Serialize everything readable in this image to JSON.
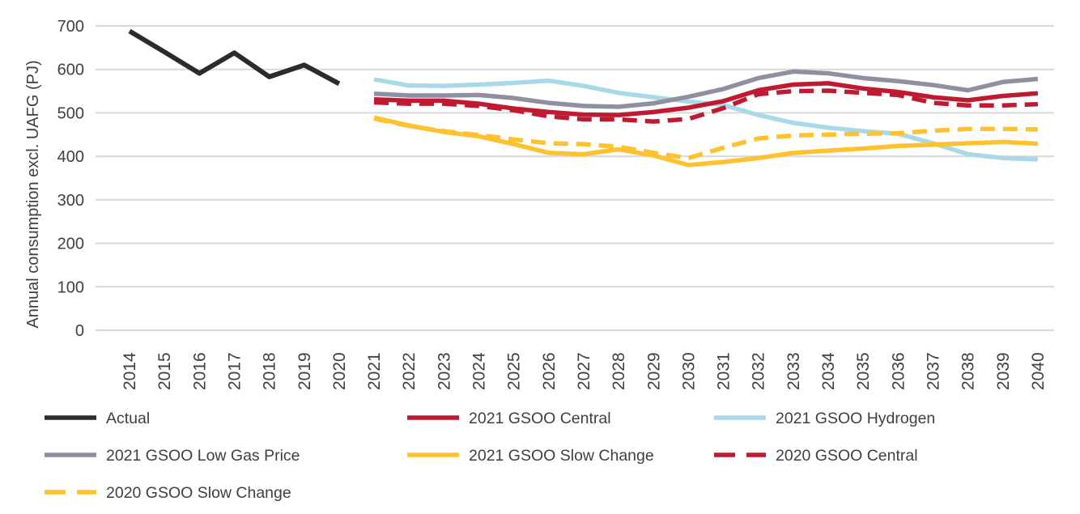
{
  "chart_data": {
    "type": "line",
    "title": "",
    "xlabel": "",
    "ylabel": "Annual consumption excl. UAFG (PJ)",
    "ylim": [
      0,
      700
    ],
    "ytick_step": 100,
    "yticks": [
      0,
      100,
      200,
      300,
      400,
      500,
      600,
      700
    ],
    "grid": "horizontal",
    "legend_position": "bottom",
    "years": [
      2014,
      2015,
      2016,
      2017,
      2018,
      2019,
      2020,
      2021,
      2022,
      2023,
      2024,
      2025,
      2026,
      2027,
      2028,
      2029,
      2030,
      2031,
      2032,
      2033,
      2034,
      2035,
      2036,
      2037,
      2038,
      2039,
      2040
    ],
    "colors": {
      "actual": "#2b2b2b",
      "red": "#c01a33",
      "light_blue": "#a9d8e8",
      "gray": "#8f8fa1",
      "yellow": "#fdc22d",
      "gridline": "#d9d9d9",
      "text": "#3f3f3f"
    },
    "series": [
      {
        "name": "Actual",
        "color": "#2b2b2b",
        "dash": false,
        "start_year": 2014,
        "values": [
          688,
          640,
          591,
          638,
          583,
          610,
          567
        ]
      },
      {
        "name": "2021 GSOO Hydrogen",
        "color": "#a9d8e8",
        "dash": false,
        "start_year": 2021,
        "values": [
          577,
          563,
          562,
          565,
          569,
          574,
          562,
          546,
          536,
          526,
          518,
          495,
          477,
          466,
          458,
          452,
          430,
          405,
          396,
          393
        ]
      },
      {
        "name": "2021 GSOO Low Gas Price",
        "color": "#8f8fa1",
        "dash": false,
        "start_year": 2021,
        "values": [
          544,
          540,
          540,
          541,
          534,
          523,
          516,
          514,
          522,
          537,
          555,
          580,
          595,
          591,
          580,
          573,
          564,
          552,
          571,
          578
        ]
      },
      {
        "name": "2021 GSOO Central",
        "color": "#c01a33",
        "dash": false,
        "start_year": 2021,
        "values": [
          531,
          528,
          528,
          521,
          510,
          502,
          496,
          495,
          502,
          512,
          527,
          552,
          565,
          568,
          556,
          548,
          536,
          529,
          539,
          545
        ]
      },
      {
        "name": "2020 GSOO Central",
        "color": "#c01a33",
        "dash": true,
        "start_year": 2021,
        "values": [
          524,
          521,
          521,
          516,
          506,
          492,
          485,
          485,
          480,
          486,
          511,
          543,
          550,
          551,
          546,
          541,
          523,
          517,
          517,
          520
        ]
      },
      {
        "name": "2021 GSOO Slow Change",
        "color": "#fdc22d",
        "dash": false,
        "start_year": 2021,
        "values": [
          489,
          471,
          456,
          446,
          428,
          408,
          405,
          416,
          402,
          380,
          387,
          396,
          408,
          413,
          418,
          424,
          427,
          430,
          433,
          429
        ]
      },
      {
        "name": "2020 GSOO Slow Change",
        "color": "#fdc22d",
        "dash": true,
        "start_year": 2021,
        "values": [
          487,
          470,
          458,
          449,
          439,
          430,
          428,
          422,
          408,
          396,
          420,
          441,
          448,
          450,
          452,
          453,
          459,
          463,
          463,
          462
        ]
      }
    ],
    "legend": [
      "Actual",
      "2021 GSOO Central",
      "2021 GSOO Hydrogen",
      "2021 GSOO Low Gas Price",
      "2021 GSOO Slow Change",
      "2020 GSOO Central",
      "2020 GSOO Slow Change"
    ]
  }
}
